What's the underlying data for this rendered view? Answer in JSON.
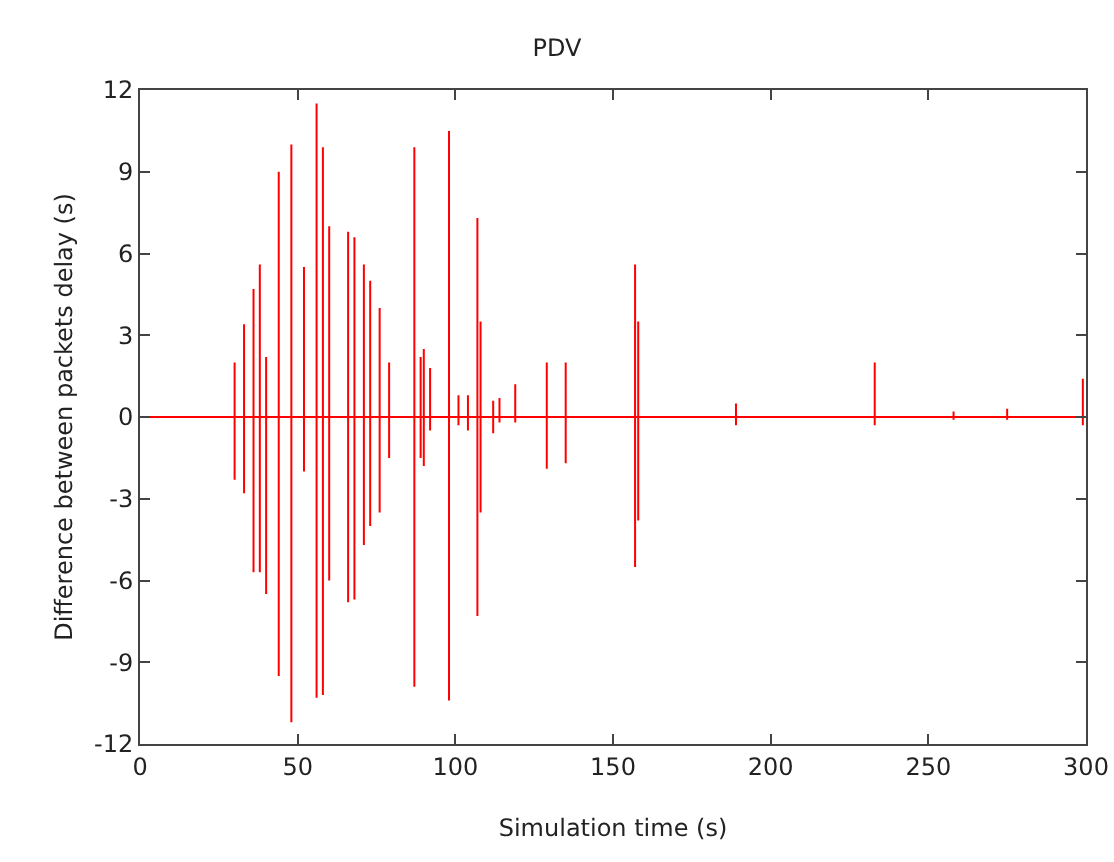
{
  "chart_data": {
    "type": "line",
    "title": "PDV",
    "xlabel": "Simulation time (s)",
    "ylabel": "Difference between packets delay (s)",
    "xlim": [
      0,
      300
    ],
    "xticks": [
      0,
      50,
      100,
      150,
      200,
      250,
      300
    ],
    "ylim": [
      -12,
      12
    ],
    "yticks": [
      -12,
      -9,
      -6,
      -3,
      0,
      3,
      6,
      9,
      12
    ],
    "grid": false,
    "marker": "none",
    "line_style": "solid",
    "series": [
      {
        "color": "#ff0000",
        "x": [
          0,
          30,
          30,
          30,
          30,
          33,
          33,
          33,
          33,
          36,
          36,
          36,
          36,
          38,
          38,
          38,
          38,
          40,
          40,
          40,
          40,
          44,
          44,
          44,
          44,
          48,
          48,
          48,
          48,
          52,
          52,
          52,
          52,
          56,
          56,
          56,
          56,
          58,
          58,
          58,
          58,
          60,
          60,
          60,
          60,
          66,
          66,
          66,
          66,
          68,
          68,
          68,
          68,
          71,
          71,
          71,
          71,
          73,
          73,
          73,
          73,
          76,
          76,
          76,
          76,
          79,
          79,
          79,
          79,
          87,
          87,
          87,
          87,
          89,
          89,
          89,
          89,
          90,
          90,
          90,
          90,
          92,
          92,
          92,
          92,
          98,
          98,
          98,
          98,
          101,
          101,
          101,
          101,
          104,
          104,
          104,
          104,
          107,
          107,
          107,
          107,
          108,
          108,
          108,
          108,
          112,
          112,
          112,
          112,
          114,
          114,
          114,
          114,
          119,
          119,
          119,
          119,
          129,
          129,
          129,
          129,
          135,
          135,
          135,
          135,
          157,
          157,
          157,
          157,
          158,
          158,
          158,
          158,
          189,
          189,
          189,
          189,
          233,
          233,
          233,
          233,
          258,
          258,
          258,
          258,
          275,
          275,
          275,
          275,
          299,
          299,
          299,
          299,
          300
        ],
        "values": [
          0,
          0,
          2,
          -2.3,
          0,
          0,
          3.4,
          -2.8,
          0,
          0,
          4.7,
          -5.7,
          0,
          0,
          5.6,
          -5.7,
          0,
          0,
          2.2,
          -6.5,
          0,
          0,
          9,
          -9.5,
          0,
          0,
          10,
          -11.2,
          0,
          0,
          5.5,
          -2,
          0,
          0,
          11.5,
          -10.3,
          0,
          0,
          9.9,
          -10.2,
          0,
          0,
          7,
          -6,
          0,
          0,
          6.8,
          -6.8,
          0,
          0,
          6.6,
          -6.7,
          0,
          0,
          5.6,
          -4.7,
          0,
          0,
          5,
          -4,
          0,
          0,
          4,
          -3.5,
          0,
          0,
          2,
          -1.5,
          0,
          0,
          9.9,
          -9.9,
          0,
          0,
          2.2,
          -1.5,
          0,
          0,
          2.5,
          -1.8,
          0,
          0,
          1.8,
          -0.5,
          0,
          0,
          10.5,
          -10.4,
          0,
          0,
          0.8,
          -0.3,
          0,
          0,
          0.8,
          -0.5,
          0,
          0,
          7.3,
          -7.3,
          0,
          0,
          3.5,
          -3.5,
          0,
          0,
          0.6,
          -0.6,
          0,
          0,
          0.7,
          -0.2,
          0,
          0,
          1.2,
          -0.2,
          0,
          0,
          2,
          -1.9,
          0,
          0,
          2,
          -1.7,
          0,
          0,
          5.6,
          -5.5,
          0,
          0,
          3.5,
          -3.8,
          0,
          0,
          0.5,
          -0.3,
          0,
          0,
          2,
          -0.3,
          0,
          0,
          0.2,
          -0.1,
          0,
          0,
          0.3,
          -0.1,
          0,
          0,
          1.4,
          -0.3,
          0,
          0
        ]
      }
    ]
  }
}
